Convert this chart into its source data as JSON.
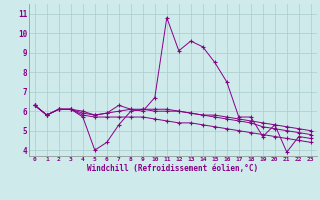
{
  "xlabel": "Windchill (Refroidissement éolien,°C)",
  "background_color": "#ceeaea",
  "grid_color": "#aacccc",
  "line_color": "#880088",
  "x_ticks": [
    0,
    1,
    2,
    3,
    4,
    5,
    6,
    7,
    8,
    9,
    10,
    11,
    12,
    13,
    14,
    15,
    16,
    17,
    18,
    19,
    20,
    21,
    22,
    23
  ],
  "y_ticks": [
    4,
    5,
    6,
    7,
    8,
    9,
    10,
    11
  ],
  "ylim": [
    3.7,
    11.5
  ],
  "xlim": [
    -0.5,
    23.5
  ],
  "series": [
    [
      6.3,
      5.8,
      6.1,
      6.1,
      6.0,
      5.8,
      5.9,
      6.3,
      6.1,
      6.0,
      6.7,
      10.8,
      9.1,
      9.6,
      9.3,
      8.5,
      7.5,
      5.7,
      5.7,
      4.7,
      5.3,
      3.9,
      4.7,
      4.6
    ],
    [
      6.3,
      5.8,
      6.1,
      6.1,
      5.7,
      4.0,
      4.4,
      5.3,
      6.0,
      6.1,
      6.0,
      6.0,
      6.0,
      5.9,
      5.8,
      5.7,
      5.6,
      5.5,
      5.4,
      5.2,
      5.1,
      5.0,
      4.9,
      4.8
    ],
    [
      6.3,
      5.8,
      6.1,
      6.1,
      5.8,
      5.7,
      5.7,
      5.7,
      5.7,
      5.7,
      5.6,
      5.5,
      5.4,
      5.4,
      5.3,
      5.2,
      5.1,
      5.0,
      4.9,
      4.8,
      4.7,
      4.6,
      4.5,
      4.4
    ],
    [
      6.3,
      5.8,
      6.1,
      6.1,
      5.9,
      5.8,
      5.9,
      6.0,
      6.1,
      6.1,
      6.1,
      6.1,
      6.0,
      5.9,
      5.8,
      5.8,
      5.7,
      5.6,
      5.5,
      5.4,
      5.3,
      5.2,
      5.1,
      5.0
    ]
  ]
}
